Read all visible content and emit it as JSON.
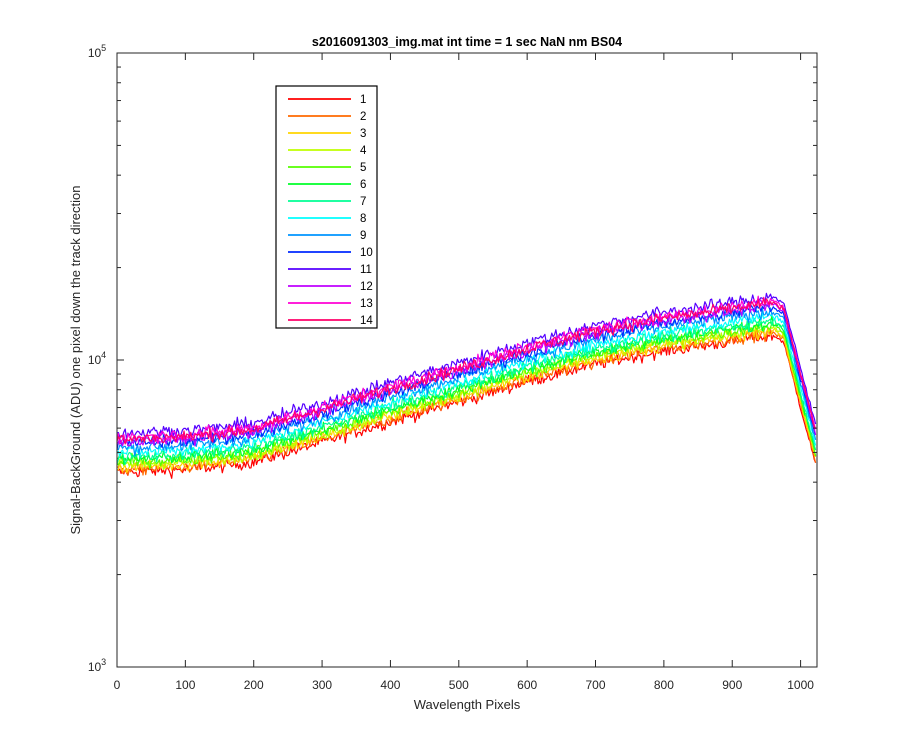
{
  "chart_data": {
    "type": "line",
    "title": "s2016091303_img.mat int time = 1 sec  NaN nm BS04",
    "xlabel": "Wavelength Pixels",
    "ylabel": "Signal-BackGround (ADU) one pixel down the track direction",
    "xlim": [
      0,
      1024
    ],
    "ylim": [
      1000,
      100000
    ],
    "yscale": "log",
    "grid": false,
    "legend_position": "top-left",
    "x_ticks": [
      0,
      100,
      200,
      300,
      400,
      500,
      600,
      700,
      800,
      900,
      1000
    ],
    "x_tick_labels": [
      "0",
      "100",
      "200",
      "300",
      "400",
      "500",
      "600",
      "700",
      "800",
      "900",
      "1000"
    ],
    "y_ticks": [
      1000,
      10000,
      100000
    ],
    "y_tick_labels": [
      {
        "base": "10",
        "exp": "3"
      },
      {
        "base": "10",
        "exp": "4"
      },
      {
        "base": "10",
        "exp": "5"
      }
    ],
    "series_shape": {
      "x": [
        0,
        50,
        100,
        150,
        200,
        300,
        400,
        500,
        600,
        700,
        800,
        880,
        930,
        960,
        975,
        1000,
        1023
      ],
      "y": [
        4300,
        4350,
        4400,
        4500,
        4650,
        5400,
        6300,
        7300,
        8500,
        9700,
        10700,
        11300,
        11800,
        12000,
        11500,
        7000,
        4500
      ]
    },
    "series": [
      {
        "name": "1",
        "color": "#ff0000",
        "scale": 1.0
      },
      {
        "name": "2",
        "color": "#ff6a00",
        "scale": 1.02
      },
      {
        "name": "3",
        "color": "#ffd500",
        "scale": 1.04
      },
      {
        "name": "4",
        "color": "#bfff00",
        "scale": 1.06
      },
      {
        "name": "5",
        "color": "#55ff00",
        "scale": 1.08
      },
      {
        "name": "6",
        "color": "#00ff2a",
        "scale": 1.1
      },
      {
        "name": "7",
        "color": "#00ff95",
        "scale": 1.12
      },
      {
        "name": "8",
        "color": "#00ffff",
        "scale": 1.16
      },
      {
        "name": "9",
        "color": "#0095ff",
        "scale": 1.2
      },
      {
        "name": "10",
        "color": "#002aff",
        "scale": 1.24
      },
      {
        "name": "11",
        "color": "#5500ff",
        "scale": 1.34
      },
      {
        "name": "12",
        "color": "#bf00ff",
        "scale": 1.26
      },
      {
        "name": "13",
        "color": "#ff00d5",
        "scale": 1.3
      },
      {
        "name": "14",
        "color": "#ff006a",
        "scale": 1.28
      }
    ]
  }
}
